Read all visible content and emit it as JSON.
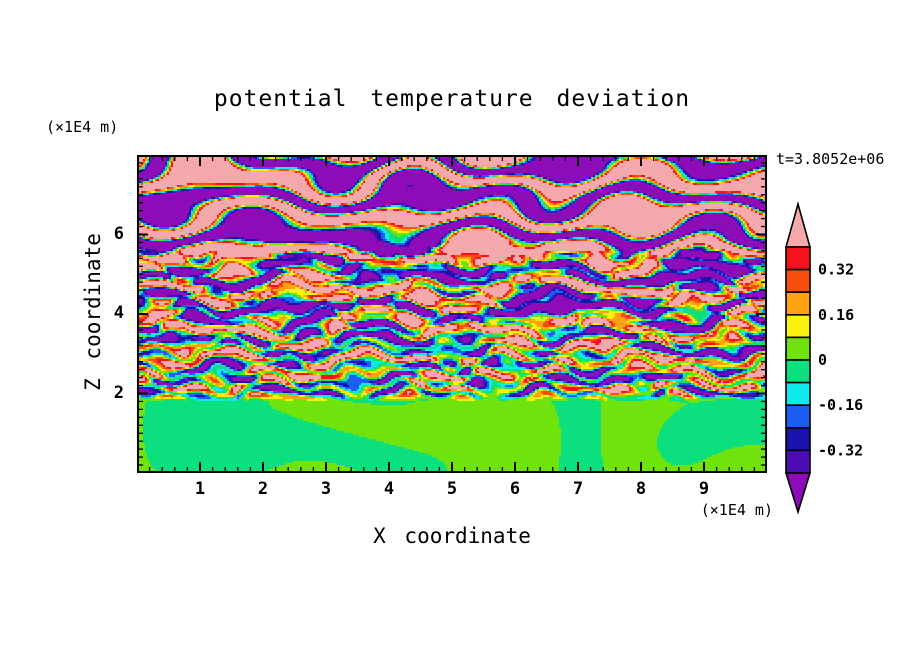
{
  "title": "potential temperature deviation",
  "timestamp": "t=3.8052e+06",
  "axes": {
    "x": {
      "label": "X coordinate",
      "unit": "(×1E4 m)",
      "range": [
        0,
        10
      ],
      "major_ticks": [
        1,
        2,
        3,
        4,
        5,
        6,
        7,
        8,
        9
      ],
      "minor_step": 0.2
    },
    "z": {
      "label": "Z coordinate",
      "unit": "(×1E4 m)",
      "range": [
        0,
        8
      ],
      "major_ticks": [
        2,
        4,
        6
      ],
      "minor_step": 0.2
    }
  },
  "colorbar": {
    "min": -0.4,
    "max": 0.4,
    "step": 0.08,
    "boundary_labels": [
      {
        "value": 0.32,
        "text": "0.32"
      },
      {
        "value": 0.16,
        "text": "0.16"
      },
      {
        "value": 0,
        "text": "0"
      },
      {
        "value": -0.16,
        "text": "-0.16"
      },
      {
        "value": -0.32,
        "text": "-0.32"
      }
    ]
  },
  "chart_data": {
    "type": "heatmap",
    "variant": "filled_contour",
    "title": "potential temperature deviation",
    "xlabel": "X coordinate (×1E4 m)",
    "ylabel": "Z coordinate (×1E4 m)",
    "time_annotation": "t=3.8052e+06",
    "x_range": [
      0,
      10
    ],
    "z_range": [
      0,
      8
    ],
    "grid": false,
    "legend_position": "right",
    "contour_levels": [
      -0.4,
      -0.32,
      -0.24,
      -0.16,
      -0.08,
      0,
      0.08,
      0.16,
      0.24,
      0.32,
      0.4
    ],
    "colors_high_to_low": [
      "#F6A9AD",
      "#F5121D",
      "#FA4E0C",
      "#FFA313",
      "#FAF00F",
      "#70E20C",
      "#0CE07E",
      "#12E9EF",
      "#1D5DF2",
      "#1912AC",
      "#4C0CB5",
      "#8E0CB8"
    ],
    "zones": [
      {
        "z_range": [
          5.4,
          8
        ],
        "description": "large-amplitude gravity-wave bands saturated alternately pink (>0.4) and purple (<-0.4) with thin rainbow transition fringes"
      },
      {
        "z_range": [
          2.0,
          5.4
        ],
        "description": "turbulent thin horizontal stripes spanning the full color range (red/orange/yellow/green/cyan/blue/navy, occasional pink/purple)"
      },
      {
        "z_range": [
          0,
          2.0
        ],
        "description": "weak deviation near zero: smooth interleaved blobs of the two green levels (-0.08..0 and 0..0.08)"
      }
    ],
    "field_model": {
      "lambda_main": 0.92,
      "amp_base": 0.05,
      "amp_stops": [
        [
          1.5,
          2.4,
          0.3
        ],
        [
          3.2,
          4.2,
          0.18
        ],
        [
          5.1,
          6.0,
          0.3
        ]
      ],
      "phase_wobble": [
        [
          0.28,
          1.9,
          1.1
        ],
        [
          0.18,
          3.3,
          -2.1
        ],
        [
          0.12,
          0.9,
          5.2
        ]
      ],
      "phase_add": [
        [
          0.7,
          2.1,
          0.35
        ],
        [
          0.45,
          3.9,
          -0.8
        ]
      ],
      "turb": {
        "amp": 0.3,
        "lambda": 0.36,
        "window": [
          1.55,
          2.0,
          5.3,
          6.1
        ],
        "mods": [
          [
            2.2,
            2.9,
            2.2
          ],
          [
            1.5,
            5.7,
            -3.1
          ],
          [
            0.9,
            9.3,
            6.7
          ]
        ],
        "fine_amp": 0.04
      },
      "bottom": {
        "amp": 0.06,
        "window": [
          1.75,
          2.05
        ]
      }
    }
  }
}
